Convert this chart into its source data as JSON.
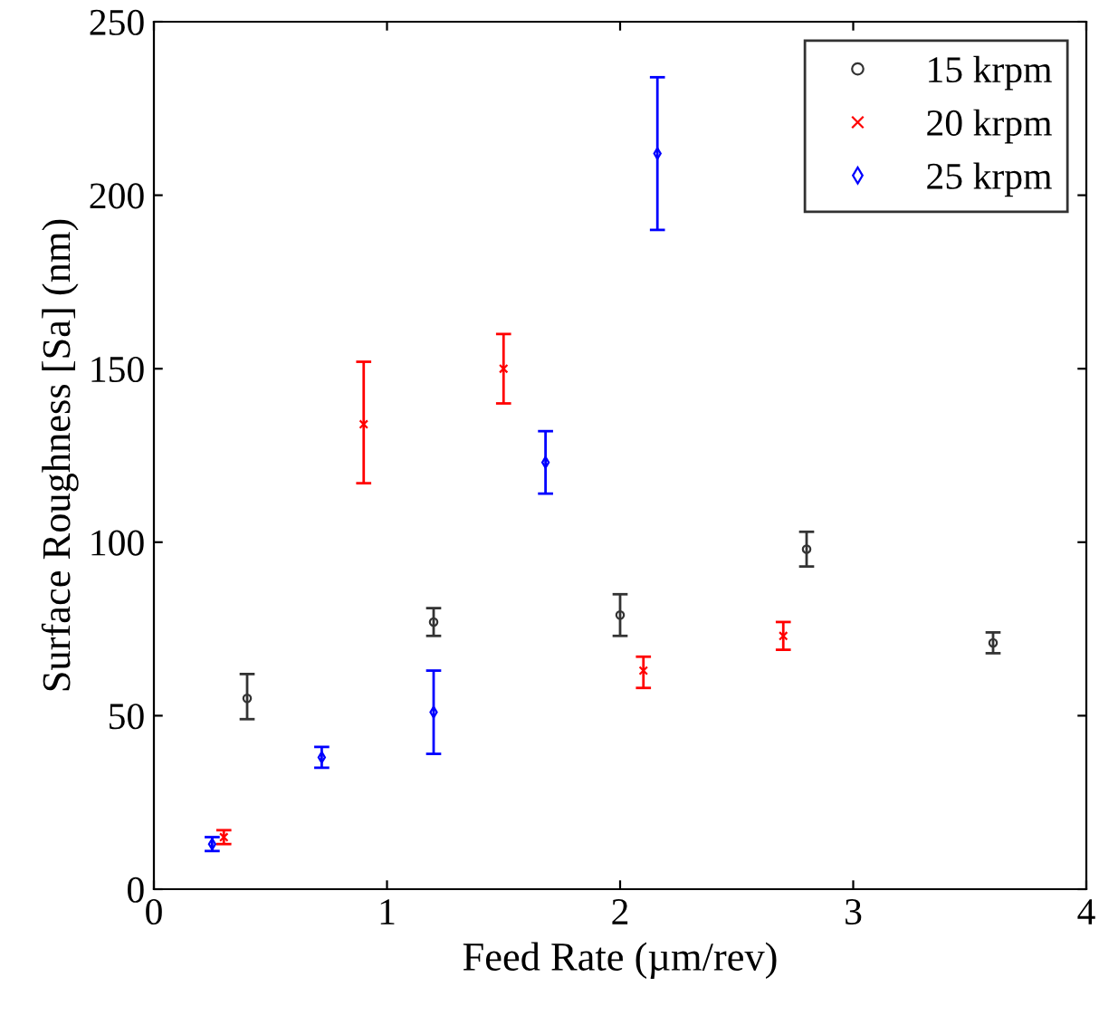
{
  "chart_data": {
    "type": "scatter",
    "xlabel": "Feed Rate (µm/rev)",
    "ylabel": "Surface Roughness [Sa] (nm)",
    "xlim": [
      0,
      4
    ],
    "xticks": [
      0,
      1,
      2,
      3,
      4
    ],
    "ylim": [
      0,
      250
    ],
    "yticks": [
      0,
      50,
      100,
      150,
      200,
      250
    ],
    "grid": false,
    "legend": "top right",
    "series": [
      {
        "name": "15 krpm",
        "color": "#333333",
        "marker": "circle",
        "x": [
          0.4,
          1.2,
          2.0,
          2.8,
          3.6
        ],
        "values": [
          55,
          77,
          79,
          98,
          71
        ],
        "errors": [
          [
            49,
            62
          ],
          [
            73,
            81
          ],
          [
            73,
            85
          ],
          [
            93,
            103
          ],
          [
            68,
            74
          ]
        ]
      },
      {
        "name": "20 krpm",
        "color": "#ff0000",
        "marker": "cross",
        "x": [
          0.3,
          0.9,
          1.5,
          2.1,
          2.7
        ],
        "values": [
          15,
          134,
          150,
          63,
          73
        ],
        "errors": [
          [
            13,
            17
          ],
          [
            117,
            152
          ],
          [
            140,
            160
          ],
          [
            58,
            67
          ],
          [
            69,
            77
          ]
        ]
      },
      {
        "name": "25 krpm",
        "color": "#0000ff",
        "marker": "diamond",
        "x": [
          0.25,
          0.72,
          1.2,
          1.68,
          2.16
        ],
        "values": [
          13,
          38,
          51,
          123,
          212
        ],
        "errors": [
          [
            11,
            15
          ],
          [
            35,
            41
          ],
          [
            39,
            63
          ],
          [
            114,
            132
          ],
          [
            190,
            234
          ]
        ]
      }
    ]
  }
}
